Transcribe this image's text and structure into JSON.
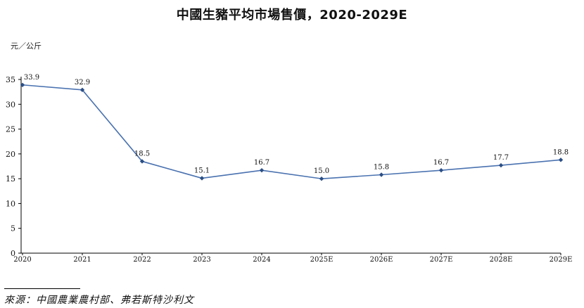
{
  "chart_data": {
    "type": "line",
    "title": "中國生豬平均市場售價，2020-2029E",
    "ylabel": "元／公斤",
    "xlabel": "",
    "categories": [
      "2020",
      "2021",
      "2022",
      "2023",
      "2024",
      "2025E",
      "2026E",
      "2027E",
      "2028E",
      "2029E"
    ],
    "series": [
      {
        "values": [
          33.9,
          32.9,
          18.5,
          15.1,
          16.7,
          15.0,
          15.8,
          16.7,
          17.7,
          18.8
        ],
        "labels": [
          "33.9",
          "32.9",
          "18.5",
          "15.1",
          "16.7",
          "15.0",
          "15.8",
          "16.7",
          "17.7",
          "18.8"
        ]
      }
    ],
    "ylim": [
      0,
      35
    ],
    "yticks": [
      0,
      5,
      10,
      15,
      20,
      25,
      30,
      35
    ],
    "ytick_labels": [
      "0",
      "5",
      "10",
      "15",
      "20",
      "25",
      "30",
      "35"
    ],
    "grid": false,
    "legend": "none",
    "line_color": "#4a72b0",
    "marker_color": "#2b4f86"
  },
  "source": {
    "text": "來源：中國農業農村部、弗若斯特沙利文"
  }
}
